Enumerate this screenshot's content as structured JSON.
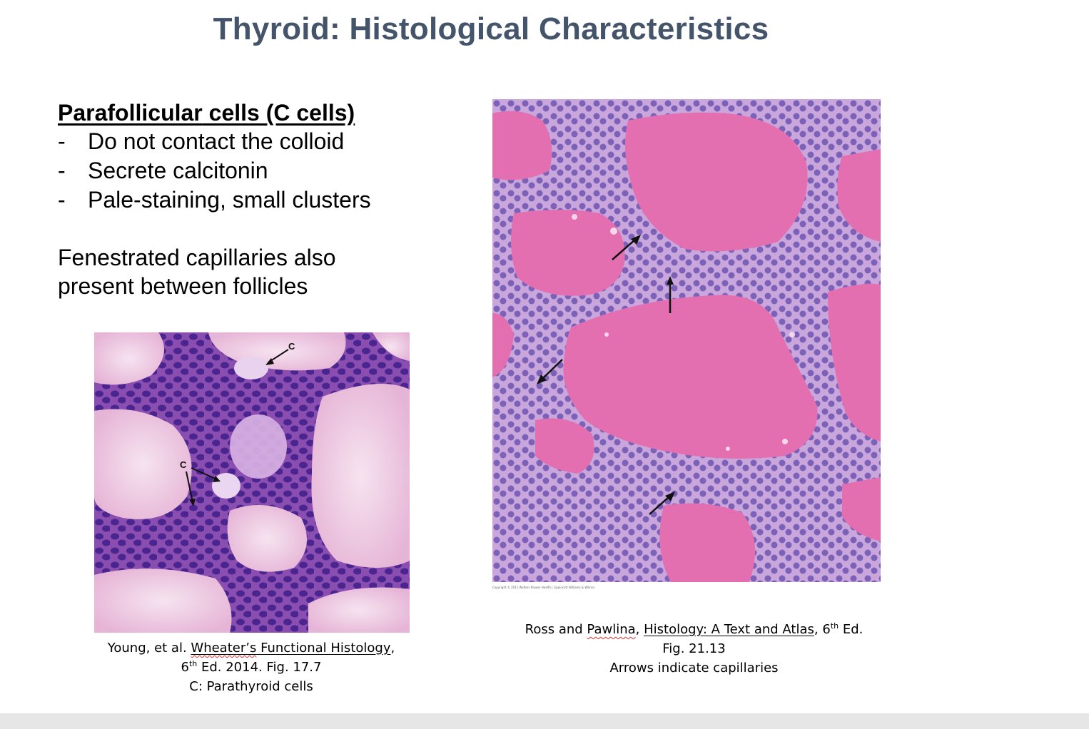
{
  "title": "Thyroid: Histological Characteristics",
  "heading": {
    "word1": "Parafollicular",
    "rest": " cells (C cells)"
  },
  "bullets": [
    {
      "dash": "-",
      "text": "Do not contact the colloid"
    },
    {
      "dash": "-",
      "text": "Secrete calcitonin"
    },
    {
      "dash": "-",
      "text": "Pale-staining, small clusters"
    }
  ],
  "paragraph": {
    "line1": "Fenestrated capillaries also",
    "line2": "present between follicles"
  },
  "left_figure": {
    "labels": [
      "C",
      "C"
    ],
    "caption": {
      "line1_pre": "Young, et al. ",
      "line1_link_a": "Wheater’s",
      "line1_link_b": " Functional Histology",
      "line1_post": ",",
      "line2_num": "6",
      "line2_sup": "th",
      "line2_rest": " Ed. 2014. Fig. 17.7",
      "line3": "C: Parathyroid cells"
    }
  },
  "right_figure": {
    "copyright": "Copyright © 2011 Wolters Kluwer Health | Lippincott Williams & Wilkins",
    "caption": {
      "line1_pre": "Ross and ",
      "line1_w": "Pawlina",
      "line1_mid": ", ",
      "line1_link": "Histology: A Text and Atlas",
      "line1_num": ", 6",
      "line1_sup": "th",
      "line1_post": " Ed.",
      "line2": "Fig. 21.13",
      "line3": "Arrows indicate capillaries"
    }
  },
  "colors": {
    "title": "#44546a",
    "colloid": "#e46fb0",
    "cytoplasm": "#c9a0d8",
    "nucleus": "#6a4bb0"
  }
}
